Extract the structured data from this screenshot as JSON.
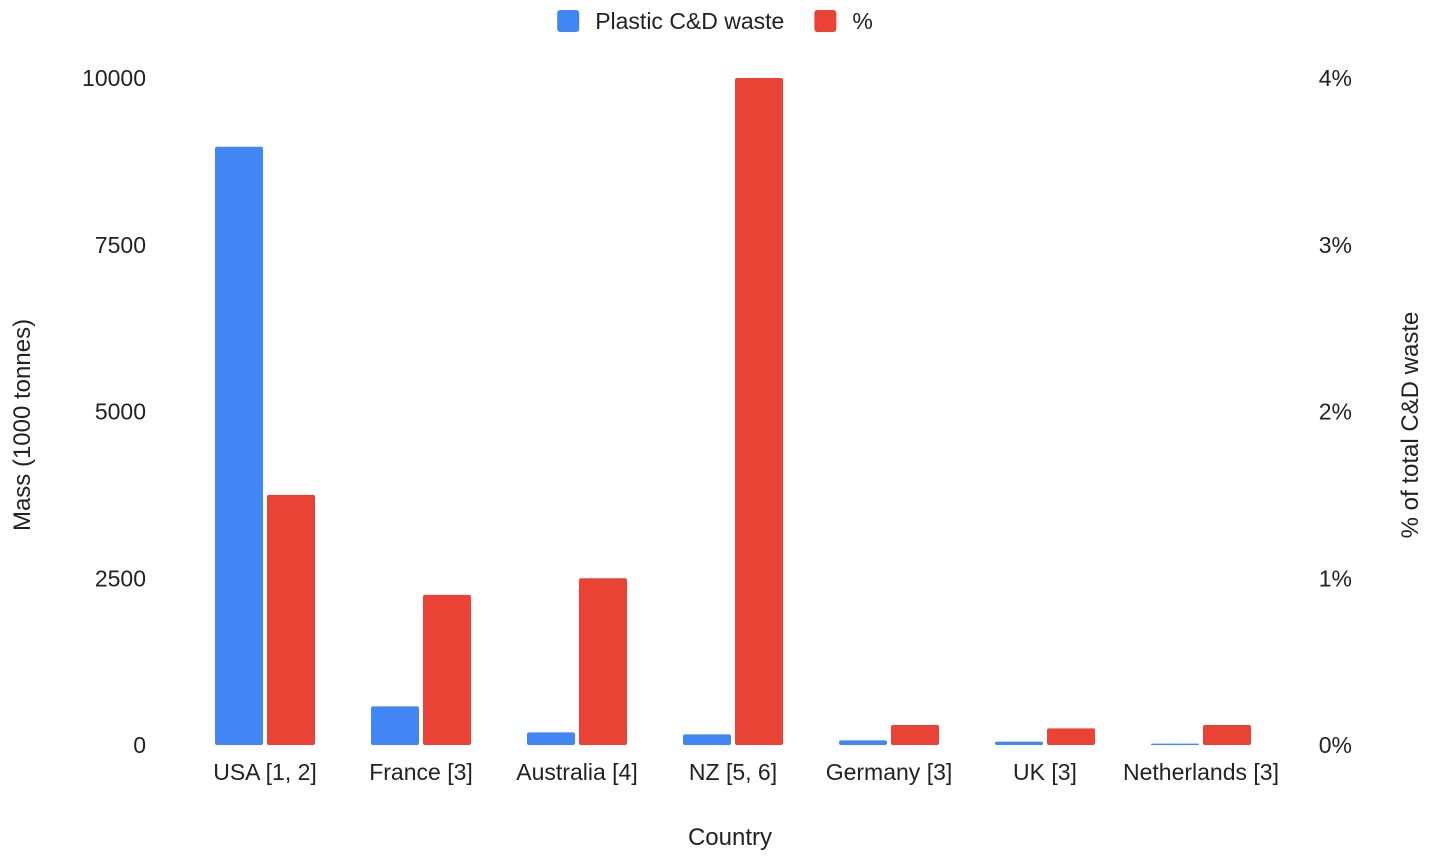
{
  "chart_data": {
    "type": "bar",
    "title": "",
    "xlabel": "Country",
    "ylabel": "Mass (1000 tonnes)",
    "y2label": "% of total C&D waste",
    "categories": [
      "USA [1, 2]",
      "France [3]",
      "Australia [4]",
      "NZ [5, 6]",
      "Germany [3]",
      "UK [3]",
      "Netherlands [3]"
    ],
    "series": [
      {
        "name": "Plastic C&D waste",
        "axis": "left",
        "color": "#4285f4",
        "values": [
          8970,
          580,
          190,
          160,
          70,
          50,
          20
        ]
      },
      {
        "name": "%",
        "axis": "right",
        "color": "#ea4335",
        "values": [
          1.5,
          0.9,
          1.0,
          4.0,
          0.12,
          0.1,
          0.12
        ]
      }
    ],
    "ylim": [
      0,
      10000
    ],
    "y2lim": [
      0,
      4
    ],
    "yticks": [
      "0",
      "2500",
      "5000",
      "7500",
      "10000"
    ],
    "y2ticks": [
      "0%",
      "1%",
      "2%",
      "3%",
      "4%"
    ],
    "grid": false,
    "legend_position": "top"
  }
}
